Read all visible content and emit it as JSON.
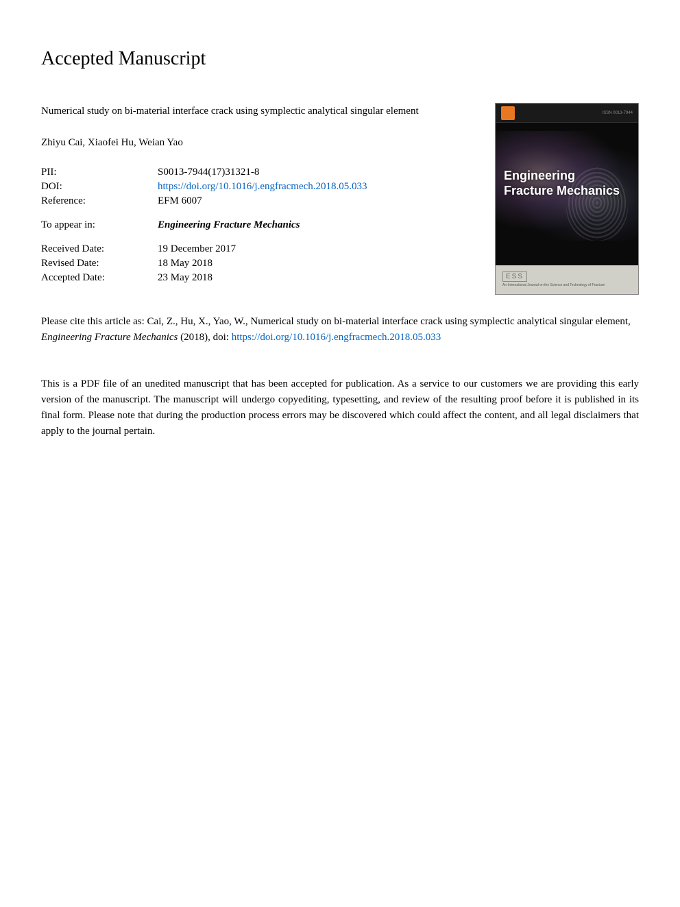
{
  "heading": "Accepted Manuscript",
  "article": {
    "title": "Numerical study on bi-material interface crack using symplectic analytical singular element",
    "authors": "Zhiyu Cai, Xiaofei Hu, Weian Yao"
  },
  "meta": {
    "pii_label": "PII:",
    "pii_value": "S0013-7944(17)31321-8",
    "doi_label": "DOI:",
    "doi_value": "https://doi.org/10.1016/j.engfracmech.2018.05.033",
    "reference_label": "Reference:",
    "reference_value": "EFM 6007",
    "appear_label": "To appear in:",
    "appear_value": "Engineering Fracture Mechanics",
    "received_label": "Received Date:",
    "received_value": "19 December 2017",
    "revised_label": "Revised Date:",
    "revised_value": "18 May 2018",
    "accepted_label": "Accepted Date:",
    "accepted_value": "23 May 2018"
  },
  "cover": {
    "journal_title_line1": "Engineering",
    "journal_title_line2": "Fracture Mechanics",
    "issn": "ISSN 0013-7944",
    "ess": "ESS",
    "subtext": "An International Journal on the Science and Technology of Fracture",
    "colors": {
      "background": "#0a0a0a",
      "bottom_bar": "#d0cfc8",
      "logo": "#e87722",
      "title_text": "#ffffff"
    }
  },
  "citation": {
    "prefix": "Please cite this article as: Cai, Z., Hu, X., Yao, W., Numerical study on bi-material interface crack using symplectic analytical singular element, ",
    "journal_italic": "Engineering Fracture Mechanics",
    "year": " (2018), doi: ",
    "link": "https://doi.org/10.1016/j.engfracmech.2018.05.033"
  },
  "disclaimer": "This is a PDF file of an unedited manuscript that has been accepted for publication. As a service to our customers we are providing this early version of the manuscript. The manuscript will undergo copyediting, typesetting, and review of the resulting proof before it is published in its final form. Please note that during the production process errors may be discovered which could affect the content, and all legal disclaimers that apply to the journal pertain.",
  "styles": {
    "link_color": "#0563c1",
    "text_color": "#000000",
    "background": "#ffffff",
    "heading_fontsize": 28,
    "body_fontsize": 15
  }
}
